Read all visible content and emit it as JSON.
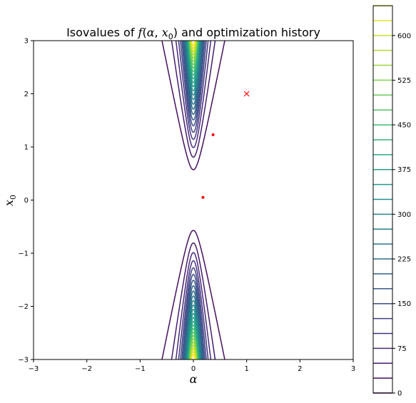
{
  "chart_data": [
    {
      "type": "contour",
      "title": "Isovalues of f(α, x₀) and optimization history",
      "xlabel": "α",
      "ylabel": "x₀",
      "xlim": [
        -3,
        3
      ],
      "ylim": [
        -3,
        3
      ],
      "x_ticks": [
        "−3",
        "−2",
        "−1",
        "0",
        "1",
        "2",
        "3"
      ],
      "y_ticks": [
        "−3",
        "−2",
        "−1",
        "0",
        "1",
        "2",
        "3"
      ],
      "grid": false,
      "colormap": "viridis",
      "optimization_history": {
        "start": {
          "x": 1.0,
          "y": 2.0,
          "marker": "x",
          "color": "#ff0000"
        },
        "points": [
          {
            "x": 0.37,
            "y": 1.23
          },
          {
            "x": 0.18,
            "y": 0.05
          }
        ],
        "color": "#ff0000"
      }
    },
    {
      "type": "colorbar",
      "ticks": [
        "0",
        "75",
        "150",
        "225",
        "300",
        "375",
        "450",
        "525",
        "600"
      ],
      "range": [
        0,
        650
      ],
      "level_step": 25
    }
  ]
}
